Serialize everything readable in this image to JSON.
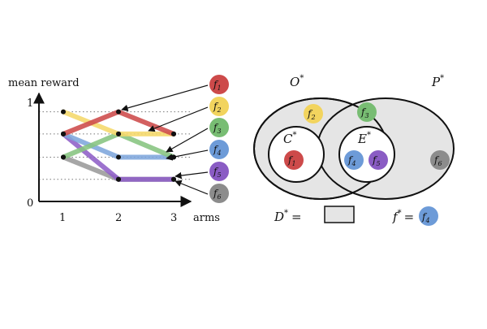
{
  "left_panel": {
    "y_axis_label": "mean reward",
    "x_axis_label": "arms",
    "y_tick_labels": [
      "0",
      "1"
    ],
    "x_tick_labels": [
      "1",
      "2",
      "3"
    ],
    "functions": [
      {
        "symbol": "f",
        "sub": "1",
        "color": "#cd4a4a",
        "line": "#cd4a4a",
        "values": [
          0.67,
          0.89,
          0.67
        ]
      },
      {
        "symbol": "f",
        "sub": "2",
        "color": "#f2d45e",
        "line": "#f5d86a",
        "values": [
          0.89,
          0.67,
          0.67
        ]
      },
      {
        "symbol": "f",
        "sub": "3",
        "color": "#78bd73",
        "line": "#86c47f",
        "values": [
          0.44,
          0.67,
          0.44
        ]
      },
      {
        "symbol": "f",
        "sub": "4",
        "color": "#6d9bd8",
        "line": "#7ea6dc",
        "values": [
          0.67,
          0.44,
          0.44
        ]
      },
      {
        "symbol": "f",
        "sub": "5",
        "color": "#8a5cc4",
        "line": "#8e5fc7",
        "values": [
          0.67,
          0.22,
          0.22
        ]
      },
      {
        "symbol": "f",
        "sub": "6",
        "color": "#8c8c8c",
        "line": "#9a9a9a",
        "values": [
          0.44,
          0.22,
          0.22
        ]
      }
    ]
  },
  "right_panel": {
    "set_O": {
      "letter": "O",
      "sup": "*"
    },
    "set_P": {
      "letter": "P",
      "sup": "*"
    },
    "set_C": {
      "letter": "C",
      "sup": "*"
    },
    "set_E": {
      "letter": "E",
      "sup": "*"
    },
    "D_label": {
      "letter": "D",
      "sup": "*",
      "eq": "="
    },
    "f_star_label": {
      "letter": "f",
      "sup": "*",
      "eq": "="
    },
    "f_star_value": {
      "symbol": "f",
      "sub": "4"
    },
    "members": [
      {
        "symbol": "f",
        "sub": "2",
        "color": "#f2d45e"
      },
      {
        "symbol": "f",
        "sub": "3",
        "color": "#78bd73"
      },
      {
        "symbol": "f",
        "sub": "1",
        "color": "#cd4a4a"
      },
      {
        "symbol": "f",
        "sub": "4",
        "color": "#6d9bd8"
      },
      {
        "symbol": "f",
        "sub": "5",
        "color": "#8a5cc4"
      },
      {
        "symbol": "f",
        "sub": "6",
        "color": "#8c8c8c"
      }
    ]
  }
}
